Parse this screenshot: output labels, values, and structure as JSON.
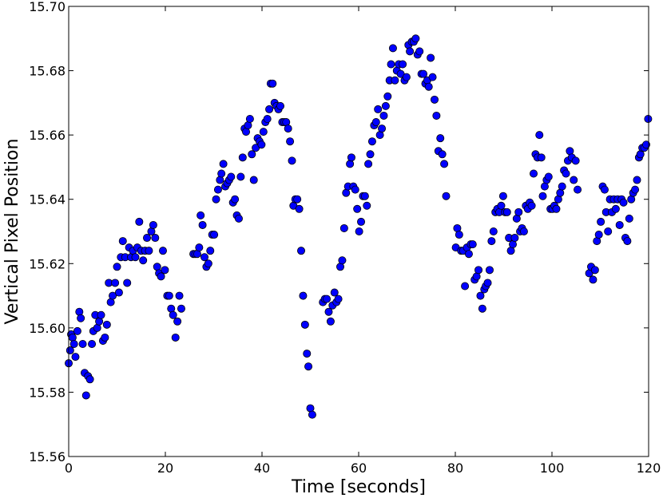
{
  "chart_data": {
    "type": "scatter",
    "title": "",
    "xlabel": "Time [seconds]",
    "ylabel": "Vertical Pixel Position",
    "xlim": [
      0,
      120
    ],
    "ylim": [
      15.56,
      15.7
    ],
    "xticks": [
      0,
      20,
      40,
      60,
      80,
      100,
      120
    ],
    "xtick_labels": [
      "0",
      "20",
      "40",
      "60",
      "80",
      "100",
      "120"
    ],
    "yticks": [
      15.56,
      15.58,
      15.6,
      15.62,
      15.64,
      15.66,
      15.68,
      15.7
    ],
    "ytick_labels": [
      "15.56",
      "15.58",
      "15.60",
      "15.62",
      "15.64",
      "15.66",
      "15.68",
      "15.70"
    ],
    "grid": false,
    "legend": "none",
    "marker_color": "#0000ff",
    "marker_edge_color": "#000000",
    "series": [
      {
        "points": [
          [
            0.0,
            15.589
          ],
          [
            0.3,
            15.593
          ],
          [
            0.5,
            15.598
          ],
          [
            0.8,
            15.597
          ],
          [
            1.1,
            15.595
          ],
          [
            1.4,
            15.591
          ],
          [
            1.8,
            15.599
          ],
          [
            2.2,
            15.605
          ],
          [
            2.5,
            15.603
          ],
          [
            2.9,
            15.595
          ],
          [
            3.3,
            15.586
          ],
          [
            3.6,
            15.579
          ],
          [
            4.0,
            15.585
          ],
          [
            4.4,
            15.584
          ],
          [
            4.8,
            15.595
          ],
          [
            5.1,
            15.599
          ],
          [
            5.5,
            15.604
          ],
          [
            5.9,
            15.6
          ],
          [
            6.3,
            15.602
          ],
          [
            6.7,
            15.604
          ],
          [
            7.1,
            15.596
          ],
          [
            7.5,
            15.597
          ],
          [
            7.9,
            15.601
          ],
          [
            8.3,
            15.614
          ],
          [
            8.7,
            15.608
          ],
          [
            9.1,
            15.61
          ],
          [
            9.6,
            15.614
          ],
          [
            10.0,
            15.619
          ],
          [
            10.4,
            15.611
          ],
          [
            10.8,
            15.622
          ],
          [
            11.2,
            15.627
          ],
          [
            11.7,
            15.622
          ],
          [
            12.1,
            15.614
          ],
          [
            12.5,
            15.625
          ],
          [
            12.9,
            15.622
          ],
          [
            13.3,
            15.624
          ],
          [
            13.8,
            15.622
          ],
          [
            14.2,
            15.625
          ],
          [
            14.6,
            15.633
          ],
          [
            15.0,
            15.624
          ],
          [
            15.4,
            15.621
          ],
          [
            15.8,
            15.624
          ],
          [
            16.2,
            15.628
          ],
          [
            16.6,
            15.624
          ],
          [
            17.1,
            15.63
          ],
          [
            17.5,
            15.632
          ],
          [
            17.9,
            15.628
          ],
          [
            18.3,
            15.619
          ],
          [
            18.7,
            15.617
          ],
          [
            19.1,
            15.616
          ],
          [
            19.5,
            15.624
          ],
          [
            19.9,
            15.618
          ],
          [
            20.4,
            15.61
          ],
          [
            20.8,
            15.61
          ],
          [
            21.2,
            15.606
          ],
          [
            21.6,
            15.604
          ],
          [
            22.1,
            15.597
          ],
          [
            22.5,
            15.602
          ],
          [
            22.9,
            15.61
          ],
          [
            23.3,
            15.606
          ],
          [
            25.8,
            15.623
          ],
          [
            26.2,
            15.623
          ],
          [
            26.6,
            15.623
          ],
          [
            27.0,
            15.625
          ],
          [
            27.3,
            15.635
          ],
          [
            27.7,
            15.632
          ],
          [
            28.1,
            15.622
          ],
          [
            28.5,
            15.619
          ],
          [
            28.9,
            15.62
          ],
          [
            29.3,
            15.624
          ],
          [
            29.7,
            15.629
          ],
          [
            30.1,
            15.629
          ],
          [
            30.5,
            15.64
          ],
          [
            30.9,
            15.643
          ],
          [
            31.3,
            15.646
          ],
          [
            31.6,
            15.648
          ],
          [
            32.0,
            15.651
          ],
          [
            32.4,
            15.644
          ],
          [
            32.8,
            15.645
          ],
          [
            33.2,
            15.646
          ],
          [
            33.6,
            15.647
          ],
          [
            34.0,
            15.639
          ],
          [
            34.4,
            15.64
          ],
          [
            34.8,
            15.635
          ],
          [
            35.2,
            15.634
          ],
          [
            35.6,
            15.647
          ],
          [
            36.0,
            15.653
          ],
          [
            36.4,
            15.662
          ],
          [
            36.7,
            15.661
          ],
          [
            37.1,
            15.663
          ],
          [
            37.5,
            15.665
          ],
          [
            37.9,
            15.654
          ],
          [
            38.3,
            15.646
          ],
          [
            38.7,
            15.656
          ],
          [
            39.1,
            15.659
          ],
          [
            39.5,
            15.658
          ],
          [
            39.9,
            15.657
          ],
          [
            40.3,
            15.661
          ],
          [
            40.7,
            15.664
          ],
          [
            41.1,
            15.665
          ],
          [
            41.5,
            15.668
          ],
          [
            41.8,
            15.676
          ],
          [
            42.2,
            15.676
          ],
          [
            42.6,
            15.67
          ],
          [
            43.0,
            15.669
          ],
          [
            43.4,
            15.668
          ],
          [
            43.8,
            15.669
          ],
          [
            44.2,
            15.664
          ],
          [
            44.6,
            15.664
          ],
          [
            45.0,
            15.664
          ],
          [
            45.4,
            15.662
          ],
          [
            45.8,
            15.658
          ],
          [
            46.2,
            15.652
          ],
          [
            46.5,
            15.638
          ],
          [
            46.9,
            15.64
          ],
          [
            47.3,
            15.64
          ],
          [
            47.7,
            15.637
          ],
          [
            48.1,
            15.624
          ],
          [
            48.5,
            15.61
          ],
          [
            48.9,
            15.601
          ],
          [
            49.3,
            15.592
          ],
          [
            49.6,
            15.588
          ],
          [
            50.0,
            15.575
          ],
          [
            50.4,
            15.573
          ],
          [
            52.6,
            15.608
          ],
          [
            53.0,
            15.609
          ],
          [
            53.4,
            15.609
          ],
          [
            53.8,
            15.605
          ],
          [
            54.2,
            15.602
          ],
          [
            54.6,
            15.607
          ],
          [
            55.0,
            15.611
          ],
          [
            55.4,
            15.608
          ],
          [
            55.8,
            15.609
          ],
          [
            56.2,
            15.619
          ],
          [
            56.6,
            15.621
          ],
          [
            57.0,
            15.631
          ],
          [
            57.4,
            15.642
          ],
          [
            57.8,
            15.644
          ],
          [
            58.2,
            15.651
          ],
          [
            58.5,
            15.653
          ],
          [
            58.9,
            15.644
          ],
          [
            59.3,
            15.643
          ],
          [
            59.7,
            15.637
          ],
          [
            60.1,
            15.63
          ],
          [
            60.5,
            15.633
          ],
          [
            60.9,
            15.641
          ],
          [
            61.3,
            15.641
          ],
          [
            61.7,
            15.638
          ],
          [
            62.0,
            15.651
          ],
          [
            62.4,
            15.654
          ],
          [
            62.8,
            15.658
          ],
          [
            63.2,
            15.663
          ],
          [
            63.6,
            15.664
          ],
          [
            64.0,
            15.668
          ],
          [
            64.4,
            15.66
          ],
          [
            64.8,
            15.662
          ],
          [
            65.2,
            15.666
          ],
          [
            65.6,
            15.669
          ],
          [
            66.0,
            15.672
          ],
          [
            66.4,
            15.677
          ],
          [
            66.7,
            15.682
          ],
          [
            67.1,
            15.687
          ],
          [
            67.5,
            15.677
          ],
          [
            67.9,
            15.68
          ],
          [
            68.3,
            15.682
          ],
          [
            68.7,
            15.679
          ],
          [
            69.1,
            15.682
          ],
          [
            69.5,
            15.677
          ],
          [
            69.9,
            15.678
          ],
          [
            70.3,
            15.688
          ],
          [
            70.6,
            15.686
          ],
          [
            71.0,
            15.689
          ],
          [
            71.4,
            15.689
          ],
          [
            71.8,
            15.69
          ],
          [
            72.2,
            15.685
          ],
          [
            72.6,
            15.686
          ],
          [
            73.0,
            15.679
          ],
          [
            73.4,
            15.679
          ],
          [
            73.8,
            15.676
          ],
          [
            74.2,
            15.677
          ],
          [
            74.5,
            15.675
          ],
          [
            74.9,
            15.684
          ],
          [
            75.3,
            15.678
          ],
          [
            75.7,
            15.671
          ],
          [
            76.1,
            15.666
          ],
          [
            76.5,
            15.655
          ],
          [
            76.9,
            15.659
          ],
          [
            77.3,
            15.654
          ],
          [
            77.7,
            15.651
          ],
          [
            78.1,
            15.641
          ],
          [
            80.1,
            15.625
          ],
          [
            80.4,
            15.631
          ],
          [
            80.8,
            15.629
          ],
          [
            81.2,
            15.624
          ],
          [
            81.6,
            15.624
          ],
          [
            82.0,
            15.613
          ],
          [
            82.4,
            15.625
          ],
          [
            82.8,
            15.623
          ],
          [
            83.2,
            15.626
          ],
          [
            83.6,
            15.626
          ],
          [
            84.0,
            15.615
          ],
          [
            84.4,
            15.616
          ],
          [
            84.8,
            15.618
          ],
          [
            85.2,
            15.61
          ],
          [
            85.6,
            15.606
          ],
          [
            86.0,
            15.612
          ],
          [
            86.3,
            15.613
          ],
          [
            86.7,
            15.614
          ],
          [
            87.1,
            15.618
          ],
          [
            87.5,
            15.627
          ],
          [
            87.9,
            15.63
          ],
          [
            88.3,
            15.636
          ],
          [
            88.7,
            15.637
          ],
          [
            89.1,
            15.636
          ],
          [
            89.5,
            15.638
          ],
          [
            89.9,
            15.641
          ],
          [
            90.3,
            15.636
          ],
          [
            90.7,
            15.636
          ],
          [
            91.1,
            15.628
          ],
          [
            91.5,
            15.624
          ],
          [
            91.9,
            15.626
          ],
          [
            92.3,
            15.628
          ],
          [
            92.7,
            15.634
          ],
          [
            93.1,
            15.636
          ],
          [
            93.4,
            15.63
          ],
          [
            93.8,
            15.631
          ],
          [
            94.2,
            15.63
          ],
          [
            94.6,
            15.638
          ],
          [
            95.0,
            15.637
          ],
          [
            95.4,
            15.639
          ],
          [
            95.8,
            15.638
          ],
          [
            96.2,
            15.648
          ],
          [
            96.6,
            15.654
          ],
          [
            97.0,
            15.653
          ],
          [
            97.4,
            15.66
          ],
          [
            97.8,
            15.653
          ],
          [
            98.1,
            15.641
          ],
          [
            98.5,
            15.644
          ],
          [
            98.9,
            15.646
          ],
          [
            99.3,
            15.647
          ],
          [
            99.7,
            15.637
          ],
          [
            100.1,
            15.637
          ],
          [
            100.5,
            15.638
          ],
          [
            100.9,
            15.637
          ],
          [
            101.3,
            15.64
          ],
          [
            101.7,
            15.642
          ],
          [
            102.1,
            15.644
          ],
          [
            102.5,
            15.649
          ],
          [
            102.9,
            15.648
          ],
          [
            103.3,
            15.652
          ],
          [
            103.7,
            15.655
          ],
          [
            104.1,
            15.653
          ],
          [
            104.5,
            15.646
          ],
          [
            104.9,
            15.652
          ],
          [
            105.3,
            15.643
          ],
          [
            107.7,
            15.617
          ],
          [
            108.1,
            15.619
          ],
          [
            108.5,
            15.615
          ],
          [
            108.9,
            15.618
          ],
          [
            109.3,
            15.627
          ],
          [
            109.7,
            15.629
          ],
          [
            110.1,
            15.633
          ],
          [
            110.5,
            15.644
          ],
          [
            110.9,
            15.643
          ],
          [
            111.2,
            15.636
          ],
          [
            111.6,
            15.63
          ],
          [
            112.0,
            15.64
          ],
          [
            112.4,
            15.636
          ],
          [
            112.8,
            15.64
          ],
          [
            113.2,
            15.637
          ],
          [
            113.6,
            15.64
          ],
          [
            114.0,
            15.632
          ],
          [
            114.4,
            15.64
          ],
          [
            114.8,
            15.639
          ],
          [
            115.2,
            15.628
          ],
          [
            115.6,
            15.627
          ],
          [
            116.0,
            15.634
          ],
          [
            116.4,
            15.64
          ],
          [
            116.8,
            15.642
          ],
          [
            117.2,
            15.643
          ],
          [
            117.6,
            15.646
          ],
          [
            118.0,
            15.653
          ],
          [
            118.3,
            15.654
          ],
          [
            118.7,
            15.656
          ],
          [
            119.1,
            15.656
          ],
          [
            119.5,
            15.657
          ],
          [
            119.9,
            15.665
          ]
        ]
      }
    ]
  }
}
